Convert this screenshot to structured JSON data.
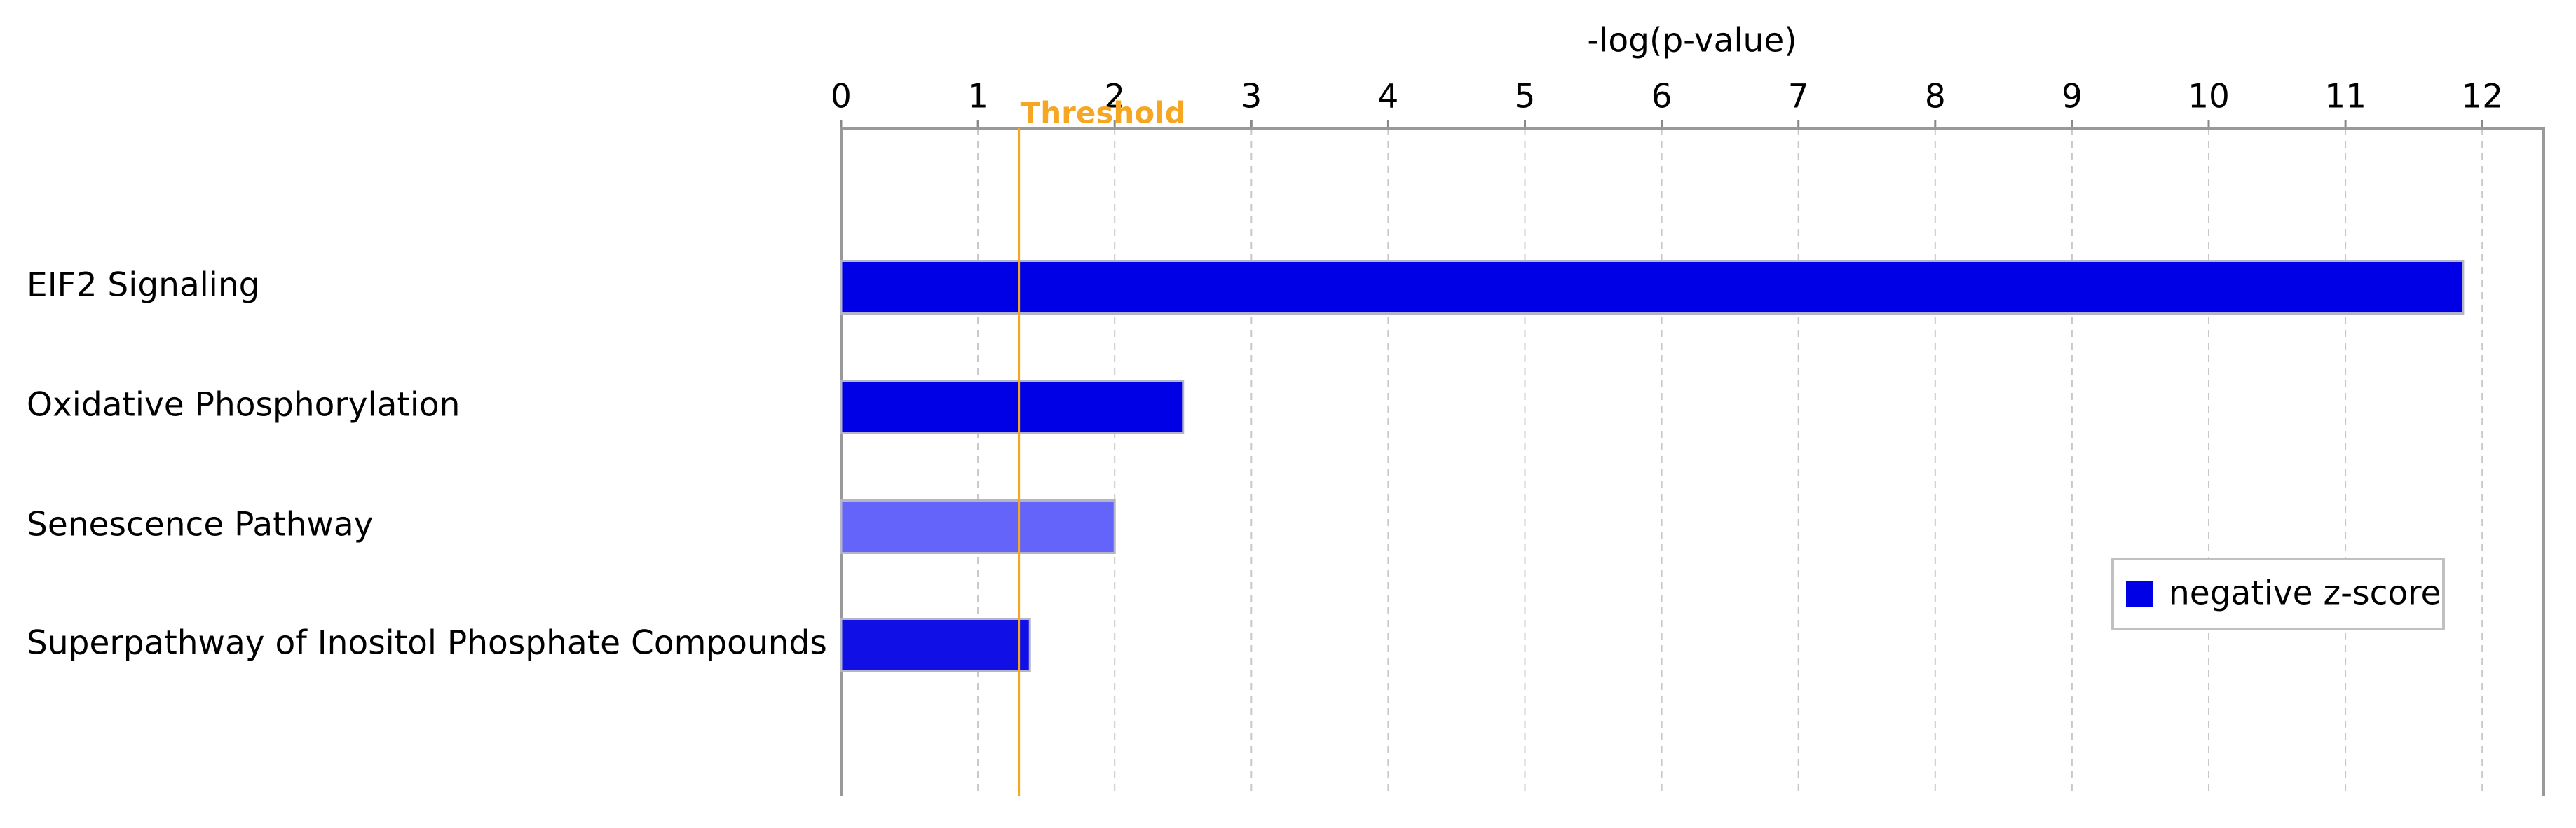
{
  "chart_data": {
    "type": "bar",
    "orientation": "horizontal",
    "x_label": "-log(p-value)",
    "categories": [
      "EIF2 Signaling",
      "Oxidative Phosphorylation",
      "Senescence Pathway",
      "Superpathway of Inositol Phosphate Compounds"
    ],
    "values": [
      11.86,
      2.5,
      2.0,
      1.38
    ],
    "colors": [
      "#0000e6",
      "#0000e6",
      "#6464fa",
      "#1010e6"
    ],
    "xlim": [
      0,
      12.45
    ],
    "xticks": [
      0,
      1,
      2,
      3,
      4,
      5,
      6,
      7,
      8,
      9,
      10,
      11,
      12
    ],
    "grid": true,
    "threshold": {
      "value": 1.3,
      "label": "Threshold",
      "color": "#f5a623"
    },
    "legend": {
      "label": "negative z-score",
      "color": "#0000e6",
      "position": "lower right"
    }
  }
}
